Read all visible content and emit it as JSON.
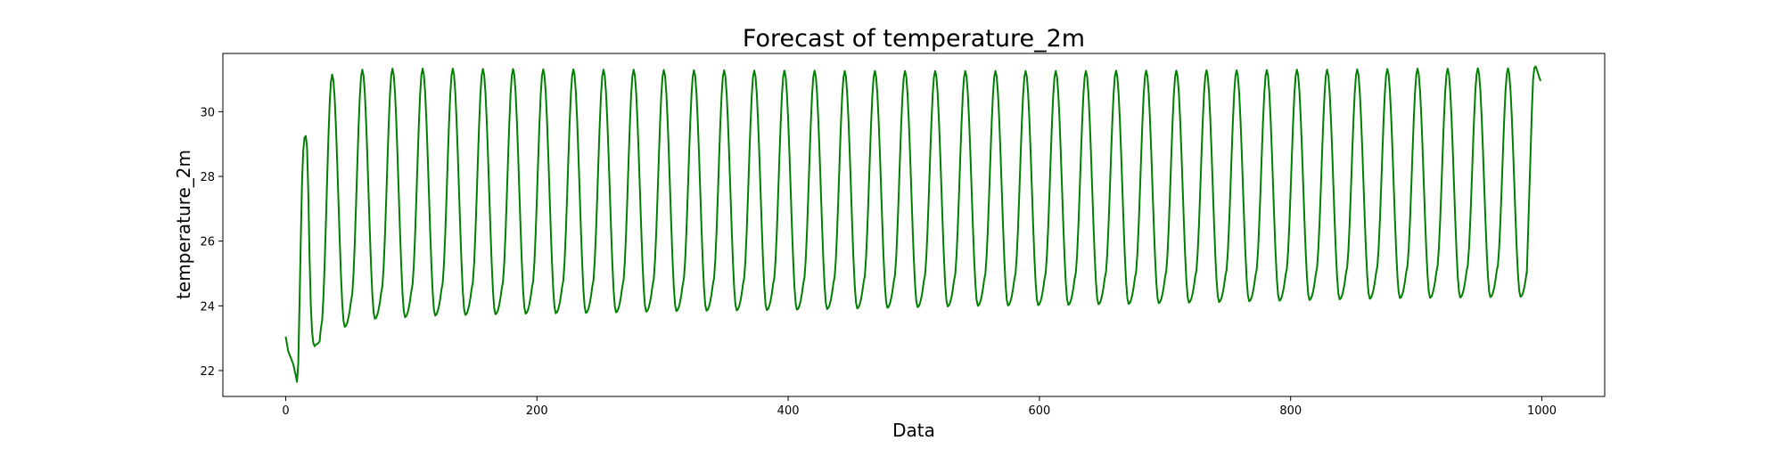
{
  "chart_data": {
    "type": "line",
    "title": "Forecast of temperature_2m",
    "xlabel": "Data",
    "ylabel": "temperature_2m",
    "xlim": [
      -50,
      1050
    ],
    "ylim": [
      21.2,
      31.8
    ],
    "xticks": [
      0,
      200,
      400,
      600,
      800,
      1000
    ],
    "yticks": [
      22,
      24,
      26,
      28,
      30
    ],
    "grid": false,
    "legend": "none",
    "series_color": "#008000",
    "period": 24,
    "initial_points": [
      [
        0,
        23.05
      ],
      [
        2,
        22.6
      ],
      [
        4,
        22.4
      ],
      [
        6,
        22.2
      ],
      [
        8,
        21.85
      ],
      [
        9,
        21.65
      ],
      [
        10,
        22.2
      ],
      [
        11,
        24.0
      ],
      [
        12,
        26.0
      ],
      [
        13,
        27.8
      ],
      [
        14,
        28.8
      ],
      [
        15,
        29.2
      ],
      [
        16,
        29.25
      ],
      [
        17,
        28.9
      ],
      [
        18,
        27.5
      ],
      [
        19,
        25.5
      ],
      [
        20,
        24.0
      ],
      [
        21,
        23.2
      ],
      [
        22,
        22.85
      ],
      [
        23,
        22.75
      ],
      [
        24,
        22.8
      ],
      [
        26,
        22.85
      ],
      [
        27,
        22.9
      ],
      [
        28,
        23.3
      ]
    ],
    "cycles": [
      {
        "start": 28,
        "min_x": 47,
        "min_y": 23.35,
        "max_x": 37,
        "max_y": 31.15
      },
      {
        "start": 52,
        "min_x": 71,
        "min_y": 23.6,
        "max_x": 61,
        "max_y": 31.3
      },
      {
        "start": 76,
        "min_x": 95,
        "min_y": 23.65,
        "max_x": 85,
        "max_y": 31.33
      },
      {
        "start": 100,
        "min_x": 119,
        "min_y": 23.7,
        "max_x": 109,
        "max_y": 31.33
      },
      {
        "start": 124,
        "min_x": 143,
        "min_y": 23.72,
        "max_x": 133,
        "max_y": 31.33
      },
      {
        "start": 148,
        "min_x": 167,
        "min_y": 23.74,
        "max_x": 157,
        "max_y": 31.32
      },
      {
        "start": 172,
        "min_x": 191,
        "min_y": 23.76,
        "max_x": 181,
        "max_y": 31.32
      },
      {
        "start": 196,
        "min_x": 215,
        "min_y": 23.77,
        "max_x": 205,
        "max_y": 31.31
      },
      {
        "start": 220,
        "min_x": 239,
        "min_y": 23.78,
        "max_x": 229,
        "max_y": 31.31
      },
      {
        "start": 244,
        "min_x": 263,
        "min_y": 23.8,
        "max_x": 253,
        "max_y": 31.3
      },
      {
        "start": 268,
        "min_x": 287,
        "min_y": 23.82,
        "max_x": 277,
        "max_y": 31.3
      },
      {
        "start": 292,
        "min_x": 311,
        "min_y": 23.84,
        "max_x": 301,
        "max_y": 31.29
      },
      {
        "start": 316,
        "min_x": 335,
        "min_y": 23.85,
        "max_x": 325,
        "max_y": 31.28
      },
      {
        "start": 340,
        "min_x": 359,
        "min_y": 23.86,
        "max_x": 349,
        "max_y": 31.28
      },
      {
        "start": 364,
        "min_x": 383,
        "min_y": 23.87,
        "max_x": 373,
        "max_y": 31.27
      },
      {
        "start": 388,
        "min_x": 407,
        "min_y": 23.88,
        "max_x": 397,
        "max_y": 31.27
      },
      {
        "start": 412,
        "min_x": 431,
        "min_y": 23.9,
        "max_x": 421,
        "max_y": 31.27
      },
      {
        "start": 436,
        "min_x": 455,
        "min_y": 23.92,
        "max_x": 445,
        "max_y": 31.26
      },
      {
        "start": 460,
        "min_x": 479,
        "min_y": 23.94,
        "max_x": 469,
        "max_y": 31.26
      },
      {
        "start": 484,
        "min_x": 503,
        "min_y": 23.96,
        "max_x": 493,
        "max_y": 31.26
      },
      {
        "start": 508,
        "min_x": 527,
        "min_y": 23.98,
        "max_x": 517,
        "max_y": 31.26
      },
      {
        "start": 532,
        "min_x": 551,
        "min_y": 24.0,
        "max_x": 541,
        "max_y": 31.26
      },
      {
        "start": 556,
        "min_x": 575,
        "min_y": 24.01,
        "max_x": 565,
        "max_y": 31.26
      },
      {
        "start": 580,
        "min_x": 599,
        "min_y": 24.02,
        "max_x": 589,
        "max_y": 31.26
      },
      {
        "start": 604,
        "min_x": 623,
        "min_y": 24.03,
        "max_x": 613,
        "max_y": 31.26
      },
      {
        "start": 628,
        "min_x": 647,
        "min_y": 24.05,
        "max_x": 637,
        "max_y": 31.26
      },
      {
        "start": 652,
        "min_x": 671,
        "min_y": 24.06,
        "max_x": 661,
        "max_y": 31.27
      },
      {
        "start": 676,
        "min_x": 695,
        "min_y": 24.08,
        "max_x": 685,
        "max_y": 31.27
      },
      {
        "start": 700,
        "min_x": 719,
        "min_y": 24.1,
        "max_x": 709,
        "max_y": 31.27
      },
      {
        "start": 724,
        "min_x": 743,
        "min_y": 24.12,
        "max_x": 733,
        "max_y": 31.28
      },
      {
        "start": 748,
        "min_x": 767,
        "min_y": 24.14,
        "max_x": 757,
        "max_y": 31.28
      },
      {
        "start": 772,
        "min_x": 791,
        "min_y": 24.16,
        "max_x": 781,
        "max_y": 31.29
      },
      {
        "start": 796,
        "min_x": 815,
        "min_y": 24.18,
        "max_x": 805,
        "max_y": 31.3
      },
      {
        "start": 820,
        "min_x": 839,
        "min_y": 24.2,
        "max_x": 829,
        "max_y": 31.3
      },
      {
        "start": 844,
        "min_x": 863,
        "min_y": 24.22,
        "max_x": 853,
        "max_y": 31.31
      },
      {
        "start": 868,
        "min_x": 887,
        "min_y": 24.24,
        "max_x": 877,
        "max_y": 31.32
      },
      {
        "start": 892,
        "min_x": 911,
        "min_y": 24.25,
        "max_x": 901,
        "max_y": 31.33
      },
      {
        "start": 916,
        "min_x": 935,
        "min_y": 24.26,
        "max_x": 925,
        "max_y": 31.33
      },
      {
        "start": 940,
        "min_x": 959,
        "min_y": 24.27,
        "max_x": 949,
        "max_y": 31.34
      },
      {
        "start": 964,
        "min_x": 983,
        "min_y": 24.28,
        "max_x": 973,
        "max_y": 31.34
      }
    ],
    "final_points": [
      [
        988,
        25.0
      ],
      [
        990,
        27.5
      ],
      [
        992,
        30.0
      ],
      [
        993,
        31.0
      ],
      [
        994,
        31.35
      ],
      [
        995,
        31.4
      ],
      [
        996,
        31.3
      ],
      [
        998,
        31.05
      ],
      [
        999,
        30.95
      ]
    ]
  }
}
